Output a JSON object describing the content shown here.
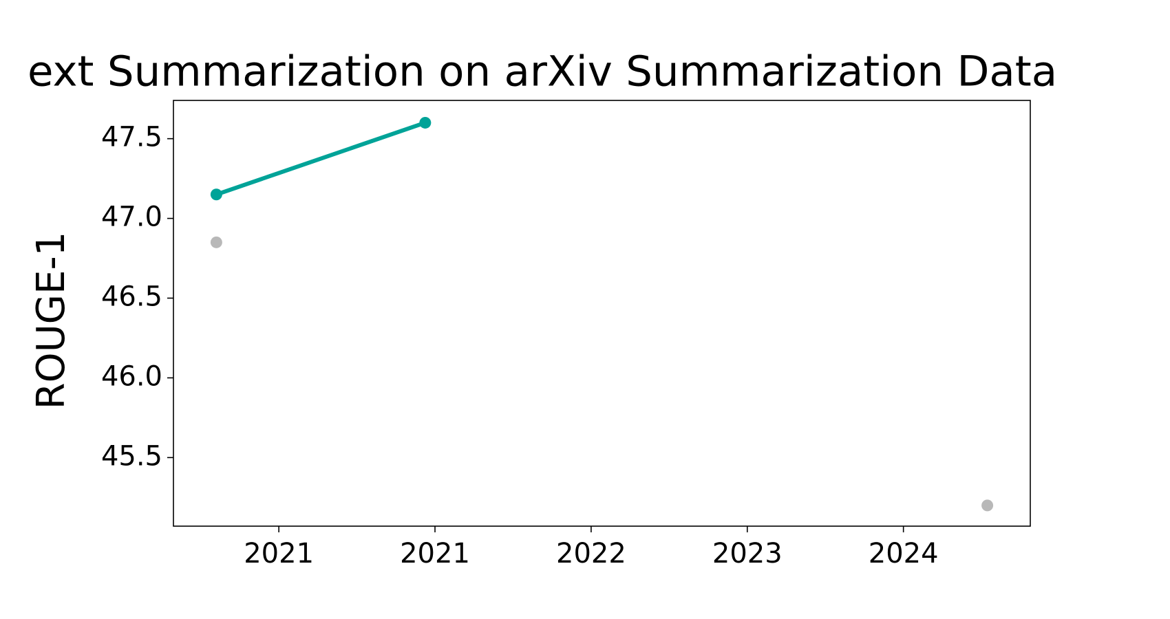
{
  "chart_data": {
    "type": "line",
    "title": "ext Summarization on arXiv Summarization Data",
    "ylabel": "ROUGE-1",
    "xlim": [
      2020.46,
      2024.85
    ],
    "xticks": [
      {
        "value": 2021.0,
        "label": "2021"
      },
      {
        "value": 2021.8,
        "label": "2021"
      },
      {
        "value": 2022.6,
        "label": "2022"
      },
      {
        "value": 2023.4,
        "label": "2023"
      },
      {
        "value": 2024.2,
        "label": "2024"
      }
    ],
    "ylim": [
      45.07,
      47.74
    ],
    "yticks": [
      {
        "value": 45.5,
        "label": "45.5"
      },
      {
        "value": 46.0,
        "label": "46.0"
      },
      {
        "value": 46.5,
        "label": "46.5"
      },
      {
        "value": 47.0,
        "label": "47.0"
      },
      {
        "value": 47.5,
        "label": "47.5"
      }
    ],
    "series": [
      {
        "color": "#00a398",
        "line": true,
        "x": [
          2020.68,
          2021.75
        ],
        "values": [
          47.15,
          47.6
        ]
      },
      {
        "color": "#b8b8b8",
        "line": false,
        "x": [
          2020.68,
          2024.63
        ],
        "values": [
          46.85,
          45.2
        ]
      }
    ]
  }
}
